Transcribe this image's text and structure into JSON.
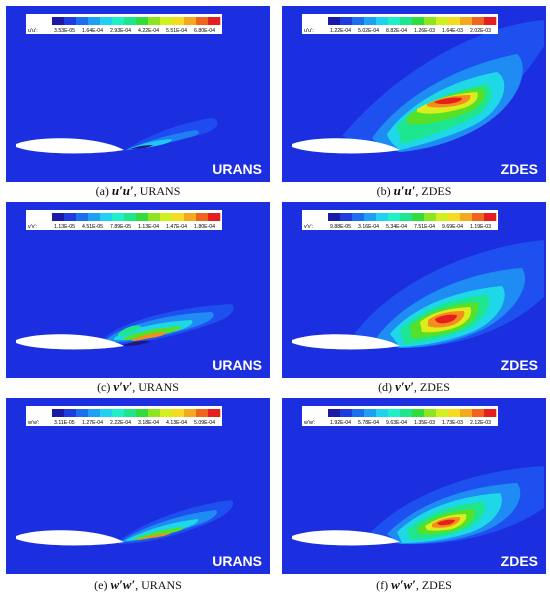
{
  "panels": [
    {
      "id": "a",
      "var_label": "u'u':",
      "ticks": [
        "3.53E-05",
        "1.64E-04",
        "2.93E-04",
        "4.22E-04",
        "5.51E-04",
        "6.80E-04"
      ],
      "method": "URANS",
      "caption": {
        "letter": "(a)",
        "math": "u′u′",
        "suffix": ", URANS"
      }
    },
    {
      "id": "b",
      "var_label": "u'u':",
      "ticks": [
        "1.22E-04",
        "5.02E-04",
        "8.82E-04",
        "1.26E-03",
        "1.64E-03",
        "2.02E-03"
      ],
      "method": "ZDES",
      "caption": {
        "letter": "(b)",
        "math": "u′u′",
        "suffix": ", ZDES"
      }
    },
    {
      "id": "c",
      "var_label": "v'v':",
      "ticks": [
        "1.13E-05",
        "4.51E-05",
        "7.89E-05",
        "1.13E-04",
        "1.47E-04",
        "1.80E-04"
      ],
      "method": "URANS",
      "caption": {
        "letter": "(c)",
        "math": "v′v′",
        "suffix": ", URANS"
      }
    },
    {
      "id": "d",
      "var_label": "v'v':",
      "ticks": [
        "9.88E-05",
        "3.16E-04",
        "5.34E-04",
        "7.51E-04",
        "9.69E-04",
        "1.19E-03"
      ],
      "method": "ZDES",
      "caption": {
        "letter": "(d)",
        "math": "v′v′",
        "suffix": ", ZDES"
      }
    },
    {
      "id": "e",
      "var_label": "w'w':",
      "ticks": [
        "3.11E-05",
        "1.27E-04",
        "2.22E-04",
        "3.18E-04",
        "4.13E-04",
        "5.09E-04"
      ],
      "method": "URANS",
      "caption": {
        "letter": "(e)",
        "math": "w′w′",
        "suffix": ", URANS"
      }
    },
    {
      "id": "f",
      "var_label": "w'w':",
      "ticks": [
        "1.92E-04",
        "5.78E-04",
        "9.63E-04",
        "1.35E-03",
        "1.73E-03",
        "2.12E-03"
      ],
      "method": "ZDES",
      "caption": {
        "letter": "(f)",
        "math": "w′w′",
        "suffix": ", ZDES"
      }
    }
  ],
  "colors": {
    "background": "#1b2ee0",
    "colormap": [
      "#1a1aa6",
      "#1e3ce0",
      "#1e6ef0",
      "#1ea0f5",
      "#1ed2f0",
      "#1ef0c8",
      "#1ee68c",
      "#32dc3c",
      "#8ce61e",
      "#d2f01e",
      "#f5dc1e",
      "#f5aa1e",
      "#f0641e",
      "#e61e1e"
    ]
  }
}
